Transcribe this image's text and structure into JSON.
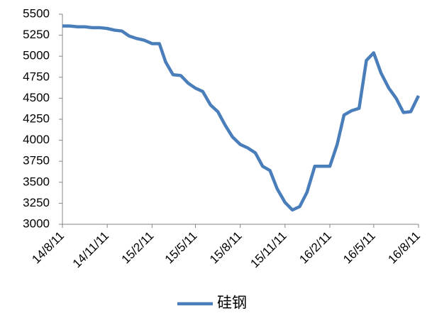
{
  "chart_data": {
    "type": "line",
    "x": [
      "2014-08-11",
      "2014-08-26",
      "2014-09-11",
      "2014-09-26",
      "2014-10-11",
      "2014-10-26",
      "2014-11-11",
      "2014-11-26",
      "2014-12-11",
      "2014-12-26",
      "2015-01-11",
      "2015-01-26",
      "2015-02-11",
      "2015-02-26",
      "2015-03-11",
      "2015-03-26",
      "2015-04-11",
      "2015-04-26",
      "2015-05-11",
      "2015-05-26",
      "2015-06-11",
      "2015-06-26",
      "2015-07-11",
      "2015-07-26",
      "2015-08-11",
      "2015-08-26",
      "2015-09-11",
      "2015-09-26",
      "2015-10-11",
      "2015-10-26",
      "2015-11-11",
      "2015-11-26",
      "2015-12-11",
      "2015-12-26",
      "2016-01-11",
      "2016-01-26",
      "2016-02-11",
      "2016-02-26",
      "2016-03-11",
      "2016-03-26",
      "2016-04-11",
      "2016-04-26",
      "2016-05-11",
      "2016-05-26",
      "2016-06-11",
      "2016-06-26",
      "2016-07-11",
      "2016-07-26",
      "2016-08-11"
    ],
    "series": [
      {
        "name": "硅钢",
        "color": "#4a7ebb",
        "values": [
          5360,
          5360,
          5350,
          5350,
          5340,
          5340,
          5330,
          5310,
          5300,
          5240,
          5210,
          5190,
          5150,
          5150,
          4930,
          4780,
          4770,
          4680,
          4620,
          4580,
          4420,
          4340,
          4180,
          4040,
          3950,
          3910,
          3850,
          3690,
          3640,
          3420,
          3260,
          3170,
          3210,
          3380,
          3690,
          3690,
          3690,
          3950,
          4300,
          4350,
          4380,
          4950,
          5040,
          4800,
          4620,
          4500,
          4330,
          4340,
          4530
        ]
      }
    ],
    "xlim": [
      "2014-08-11",
      "2016-08-11"
    ],
    "xticks": [
      {
        "value": "2014-08-11",
        "label": "14/8/11"
      },
      {
        "value": "2014-11-11",
        "label": "14/11/11"
      },
      {
        "value": "2015-02-11",
        "label": "15/2/11"
      },
      {
        "value": "2015-05-11",
        "label": "15/5/11"
      },
      {
        "value": "2015-08-11",
        "label": "15/8/11"
      },
      {
        "value": "2015-11-11",
        "label": "15/11/11"
      },
      {
        "value": "2016-02-11",
        "label": "16/2/11"
      },
      {
        "value": "2016-05-11",
        "label": "16/5/11"
      },
      {
        "value": "2016-08-11",
        "label": "16/8/11"
      }
    ],
    "ylim": [
      3000,
      5500
    ],
    "yticks": [
      3000,
      3250,
      3500,
      3750,
      4000,
      4250,
      4500,
      4750,
      5000,
      5250,
      5500
    ],
    "grid": false,
    "legend": "bottom"
  }
}
